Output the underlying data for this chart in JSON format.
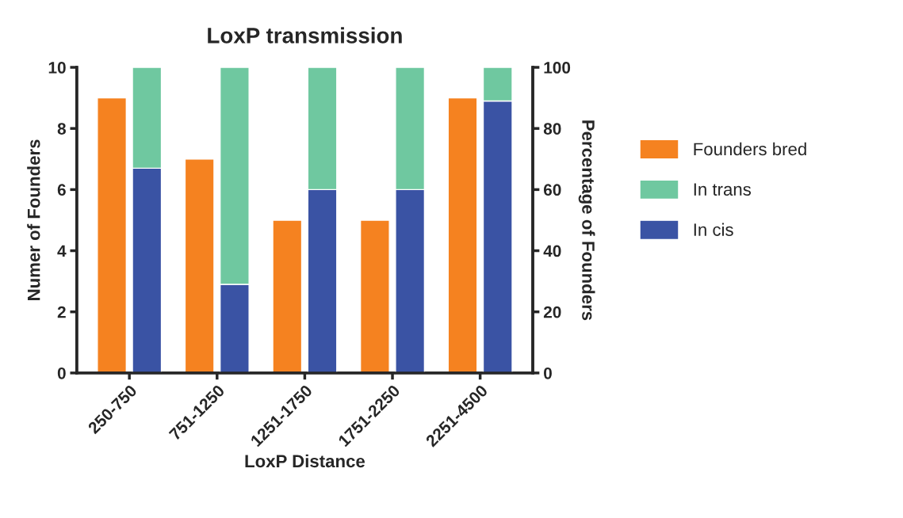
{
  "chart_data": {
    "type": "bar",
    "title": "LoxP transmission",
    "xlabel": "LoxP Distance",
    "ylabel": "Numer of Founders",
    "y2label": "Percentage of Founders",
    "categories": [
      "250-750",
      "751-1250",
      "1251-1750",
      "1751-2250",
      "2251-4500"
    ],
    "series": [
      {
        "name": "Founders bred",
        "color": "#f58220",
        "values": [
          9,
          7,
          5,
          5,
          9
        ]
      },
      {
        "name": "In cis",
        "color": "#3a53a4",
        "axis": "y2",
        "values": [
          67,
          29,
          60,
          60,
          89
        ]
      },
      {
        "name": "In trans",
        "color": "#6fc8a0",
        "axis": "y2",
        "values": [
          33,
          71,
          40,
          40,
          11
        ]
      }
    ],
    "stacked": true,
    "ylim": [
      0,
      10
    ],
    "yticks": [
      0,
      2,
      4,
      6,
      8,
      10
    ],
    "y2lim": [
      0,
      100
    ],
    "y2ticks": [
      0,
      20,
      40,
      60,
      80,
      100
    ],
    "grid": false,
    "legend": "right"
  }
}
